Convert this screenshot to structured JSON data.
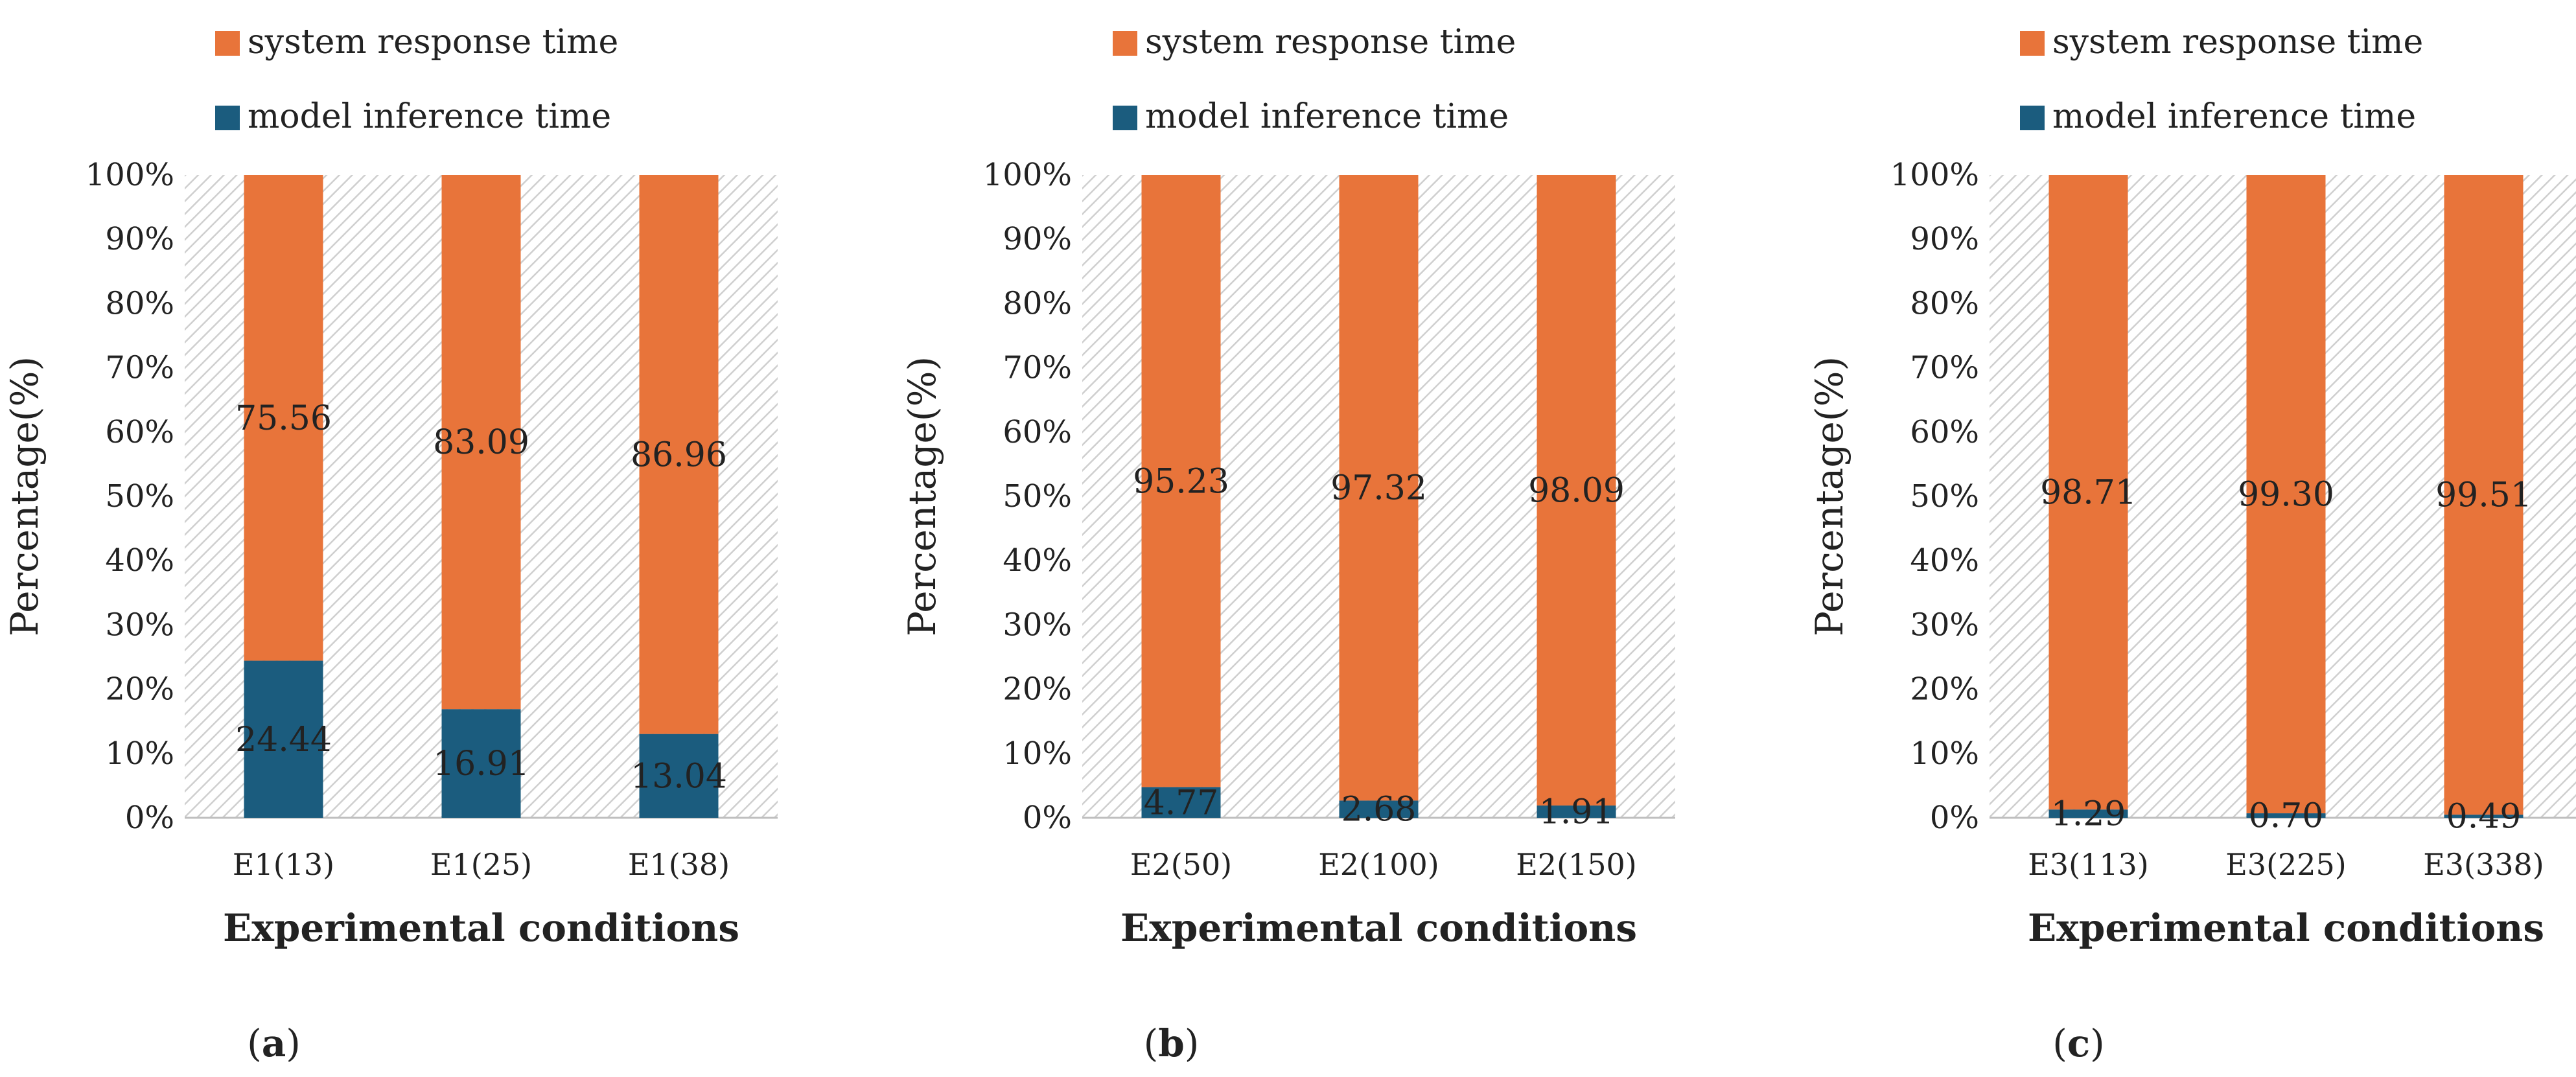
{
  "colors": {
    "system_response": "#E8743A",
    "model_inference": "#1B5C7E",
    "plot_background": "#D6D6D6",
    "axis": "#BFBFBF"
  },
  "chart_data": [
    {
      "type": "bar",
      "stacked": true,
      "panel_label": "a",
      "categories": [
        "E1(13)",
        "E1(25)",
        "E1(38)"
      ],
      "series": [
        {
          "name": "model inference time",
          "values": [
            24.44,
            16.91,
            13.04
          ],
          "labels": [
            "24.44",
            "16.91",
            "13.04"
          ]
        },
        {
          "name": "system response time",
          "values": [
            75.56,
            83.09,
            86.96
          ],
          "labels": [
            "75.56",
            "83.09",
            "86.96"
          ]
        }
      ],
      "xlabel": "Experimental conditions",
      "ylabel": "Percentage(%)",
      "ylim": [
        0,
        100
      ],
      "yticks": [
        "0%",
        "10%",
        "20%",
        "30%",
        "40%",
        "50%",
        "60%",
        "70%",
        "80%",
        "90%",
        "100%"
      ],
      "legend": [
        "system response time",
        "model inference time"
      ],
      "legend_position": "top"
    },
    {
      "type": "bar",
      "stacked": true,
      "panel_label": "b",
      "categories": [
        "E2(50)",
        "E2(100)",
        "E2(150)"
      ],
      "series": [
        {
          "name": "model inference time",
          "values": [
            4.77,
            2.68,
            1.91
          ],
          "labels": [
            "4.77",
            "2.68",
            "1.91"
          ]
        },
        {
          "name": "system response time",
          "values": [
            95.23,
            97.32,
            98.09
          ],
          "labels": [
            "95.23",
            "97.32",
            "98.09"
          ]
        }
      ],
      "xlabel": "Experimental conditions",
      "ylabel": "Percentage(%)",
      "ylim": [
        0,
        100
      ],
      "yticks": [
        "0%",
        "10%",
        "20%",
        "30%",
        "40%",
        "50%",
        "60%",
        "70%",
        "80%",
        "90%",
        "100%"
      ],
      "legend": [
        "system response time",
        "model inference time"
      ],
      "legend_position": "top"
    },
    {
      "type": "bar",
      "stacked": true,
      "panel_label": "c",
      "categories": [
        "E3(113)",
        "E3(225)",
        "E3(338)"
      ],
      "series": [
        {
          "name": "model inference time",
          "values": [
            1.29,
            0.7,
            0.49
          ],
          "labels": [
            "1.29",
            "0.70",
            "0.49"
          ]
        },
        {
          "name": "system response time",
          "values": [
            98.71,
            99.3,
            99.51
          ],
          "labels": [
            "98.71",
            "99.30",
            "99.51"
          ]
        }
      ],
      "xlabel": "Experimental conditions",
      "ylabel": "Percentage(%)",
      "ylim": [
        0,
        100
      ],
      "yticks": [
        "0%",
        "10%",
        "20%",
        "30%",
        "40%",
        "50%",
        "60%",
        "70%",
        "80%",
        "90%",
        "100%"
      ],
      "legend": [
        "system response time",
        "model inference time"
      ],
      "legend_position": "top"
    }
  ]
}
